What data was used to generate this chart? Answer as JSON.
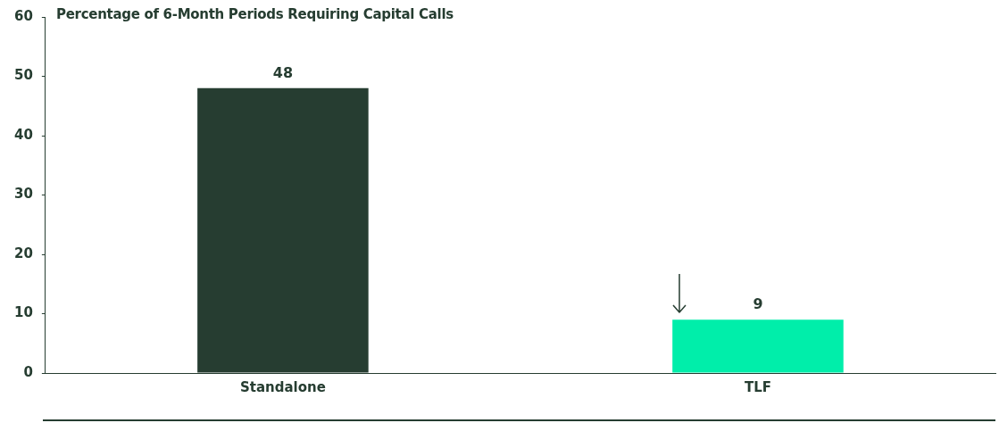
{
  "chart_data": {
    "type": "bar",
    "title": "Percentage of 6-Month Periods Requiring Capital Calls",
    "categories": [
      "Standalone",
      "TLF"
    ],
    "values": [
      48,
      9
    ],
    "colors": [
      "#263d31",
      "#00eeaa"
    ],
    "ylim": [
      0,
      60
    ],
    "yticks": [
      0,
      10,
      20,
      30,
      40,
      50,
      60
    ],
    "grid": false,
    "legend": false,
    "data_labels": true
  }
}
